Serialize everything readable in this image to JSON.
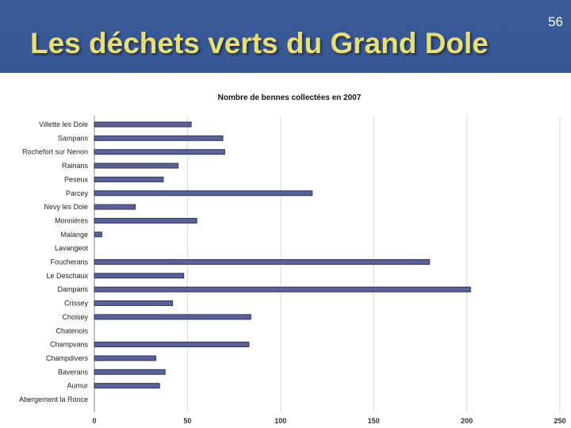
{
  "slide": {
    "title": "Les déchets verts du Grand Dole",
    "page_number": "56",
    "accent_color": "#e8e070",
    "background_color": "#2f4f8c"
  },
  "chart_data": {
    "type": "bar",
    "orientation": "horizontal",
    "title": "Nombre de bennes collectées en 2007",
    "xlabel": "",
    "ylabel": "",
    "xlim": [
      0,
      250
    ],
    "x_ticks": [
      0,
      50,
      100,
      150,
      200,
      250
    ],
    "grid": true,
    "bar_color": "#5a6196",
    "categories": [
      "Villette les Dole",
      "Sampans",
      "Rochefort sur Nenon",
      "Rainans",
      "Peseux",
      "Parcey",
      "Nevy les Dole",
      "Monnières",
      "Malange",
      "Lavangeot",
      "Foucherans",
      "Le Deschaux",
      "Damparis",
      "Crissey",
      "Choisey",
      "Chatenois",
      "Champvans",
      "Champdivers",
      "Baverans",
      "Aumur",
      "Abergement la Ronce"
    ],
    "values": [
      52,
      69,
      70,
      45,
      37,
      117,
      22,
      55,
      4,
      0,
      180,
      48,
      202,
      42,
      84,
      0,
      83,
      33,
      38,
      35,
      0
    ]
  }
}
